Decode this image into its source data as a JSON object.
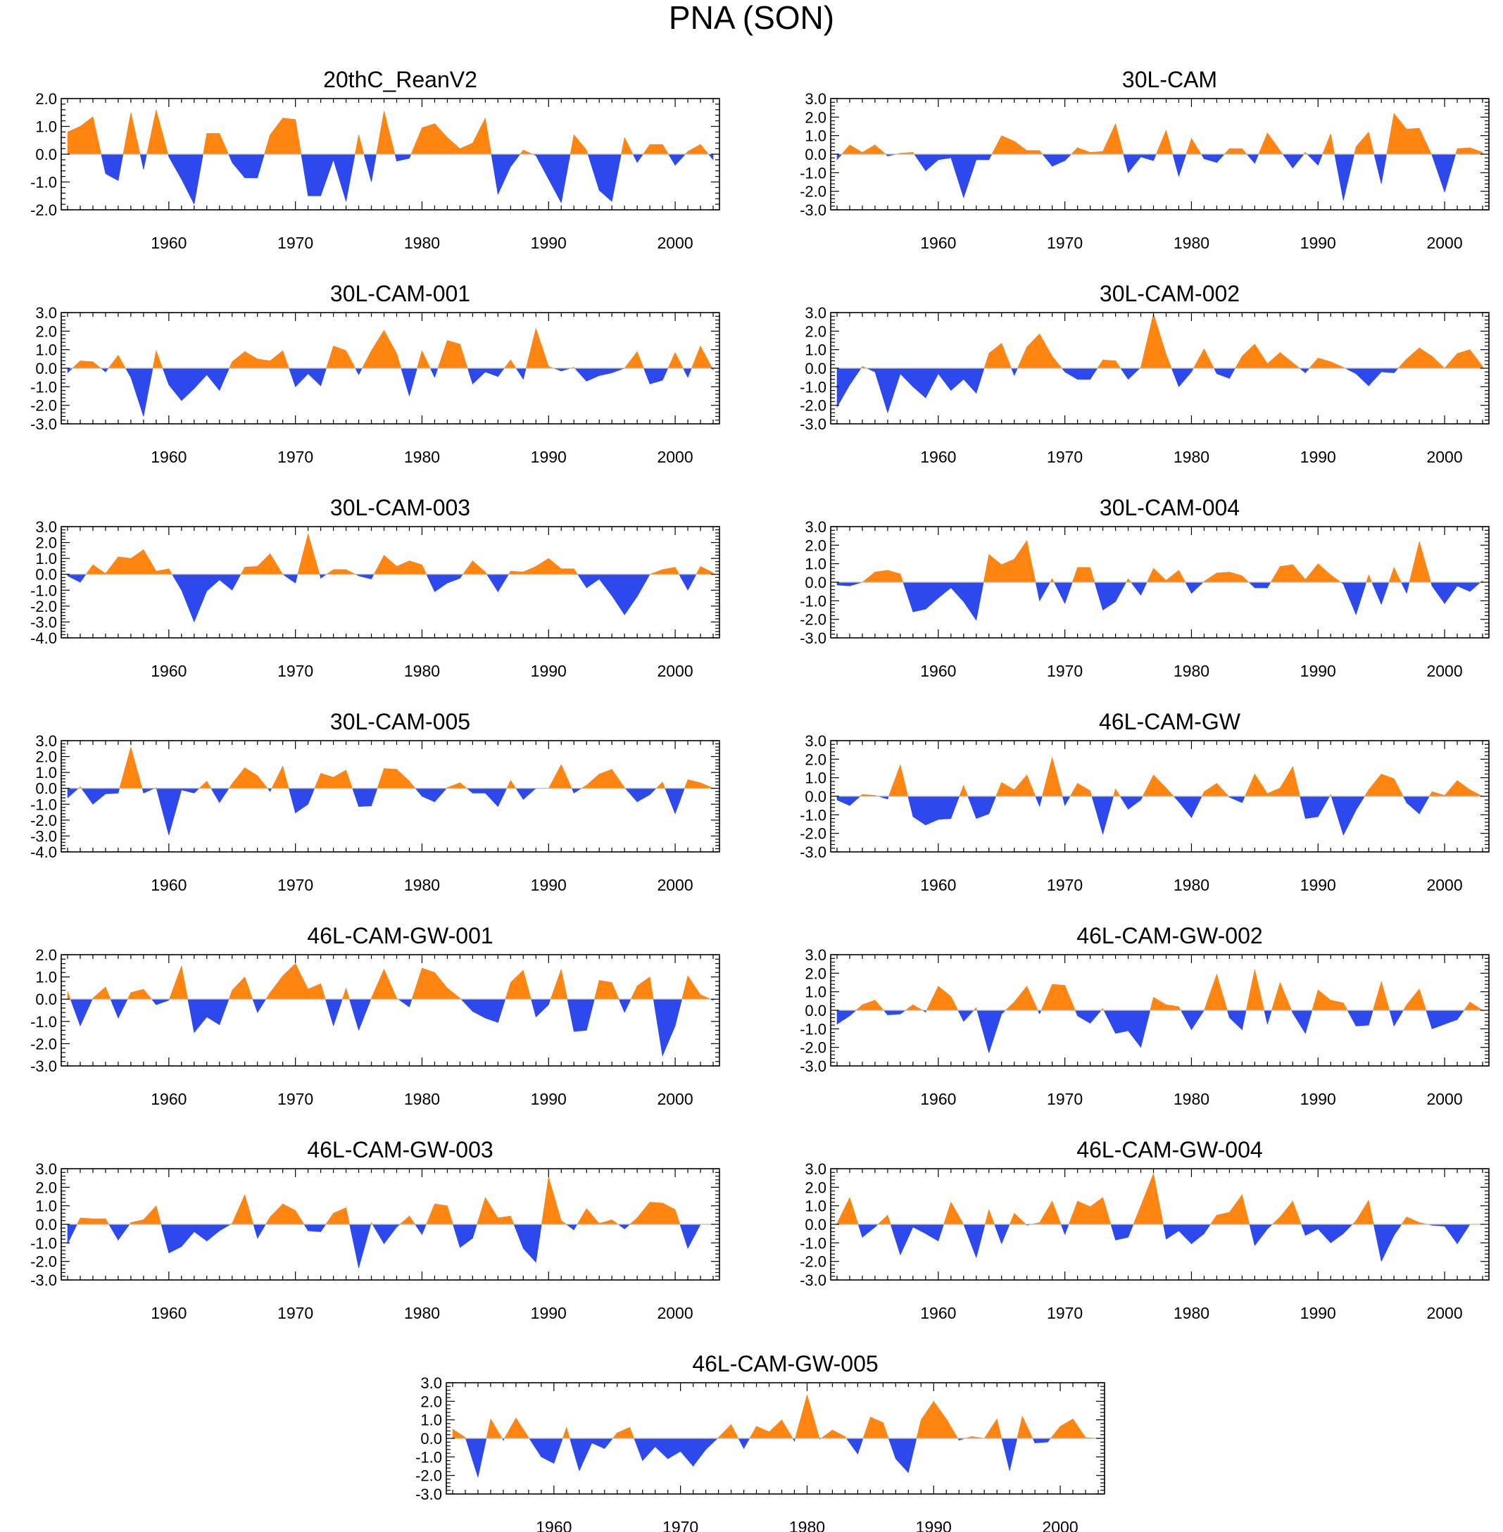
{
  "title": "PNA (SON)",
  "colors": {
    "positive": "#ff8410",
    "negative": "#2d49ee",
    "axis": "#000000"
  },
  "chart_data": [
    {
      "type": "area",
      "title": "20thC_ReanV2",
      "x_start": 1952,
      "xlim": [
        1951.5,
        2003.5
      ],
      "ylim": [
        -2.0,
        2.0
      ],
      "yticks": [
        -2.0,
        -1.0,
        0.0,
        1.0,
        2.0
      ],
      "xticks": [
        1960,
        1970,
        1980,
        1990,
        2000
      ],
      "values": [
        0.8,
        1.0,
        1.35,
        -0.7,
        -0.95,
        1.5,
        -0.55,
        1.6,
        -0.1,
        -0.9,
        -1.8,
        0.75,
        0.75,
        -0.3,
        -0.85,
        -0.85,
        0.7,
        1.3,
        1.25,
        -1.5,
        -1.5,
        -0.2,
        -1.7,
        0.7,
        -1.0,
        1.55,
        -0.25,
        -0.15,
        0.95,
        1.1,
        0.6,
        0.2,
        0.4,
        1.3,
        -1.45,
        -0.45,
        0.15,
        -0.05,
        -0.9,
        -1.75,
        0.7,
        0.15,
        -1.3,
        -1.7,
        0.6,
        -0.3,
        0.35,
        0.35,
        -0.4,
        0.1,
        0.35,
        -0.2
      ]
    },
    {
      "type": "area",
      "title": "30L-CAM",
      "x_start": 1952,
      "xlim": [
        1951.5,
        2003.5
      ],
      "ylim": [
        -3.0,
        3.0
      ],
      "yticks": [
        -3.0,
        -2.0,
        -1.0,
        0.0,
        1.0,
        2.0,
        3.0
      ],
      "xticks": [
        1960,
        1970,
        1980,
        1990,
        2000
      ],
      "values": [
        -0.3,
        0.5,
        0.1,
        0.5,
        -0.1,
        0.05,
        0.1,
        -0.9,
        -0.3,
        -0.2,
        -2.35,
        -0.3,
        -0.3,
        1.0,
        0.7,
        0.2,
        0.2,
        -0.65,
        -0.35,
        0.35,
        0.1,
        0.15,
        1.65,
        -1.0,
        -0.15,
        -0.35,
        1.3,
        -1.2,
        0.85,
        -0.25,
        -0.45,
        0.3,
        0.3,
        -0.5,
        1.15,
        0.2,
        -0.75,
        0.1,
        -0.6,
        1.1,
        -2.5,
        0.4,
        1.2,
        -1.6,
        2.2,
        1.35,
        1.4,
        -0.05,
        -2.05,
        0.3,
        0.35,
        0.1
      ]
    },
    {
      "type": "area",
      "title": "30L-CAM-001",
      "x_start": 1952,
      "xlim": [
        1951.5,
        2003.5
      ],
      "ylim": [
        -3.0,
        3.0
      ],
      "yticks": [
        -3.0,
        -2.0,
        -1.0,
        0.0,
        1.0,
        2.0,
        3.0
      ],
      "xticks": [
        1960,
        1970,
        1980,
        1990,
        2000
      ],
      "values": [
        -0.25,
        0.4,
        0.35,
        -0.2,
        0.7,
        -0.5,
        -2.6,
        0.95,
        -0.9,
        -1.75,
        -1.1,
        -0.35,
        -1.2,
        0.35,
        0.9,
        0.5,
        0.4,
        0.95,
        -1.0,
        -0.3,
        -0.95,
        1.2,
        0.95,
        -0.35,
        0.95,
        2.05,
        0.8,
        -1.5,
        0.95,
        -0.5,
        1.5,
        1.3,
        -0.85,
        -0.2,
        -0.45,
        0.45,
        -0.6,
        2.15,
        0.1,
        -0.15,
        0.05,
        -0.7,
        -0.4,
        -0.25,
        0.0,
        0.9,
        -0.85,
        -0.65,
        0.85,
        -0.5,
        1.2,
        -0.1
      ]
    },
    {
      "type": "area",
      "title": "30L-CAM-002",
      "x_start": 1952,
      "xlim": [
        1951.5,
        2003.5
      ],
      "ylim": [
        -3.0,
        3.0
      ],
      "yticks": [
        -3.0,
        -2.0,
        -1.0,
        0.0,
        1.0,
        2.0,
        3.0
      ],
      "xticks": [
        1960,
        1970,
        1980,
        1990,
        2000
      ],
      "values": [
        -2.1,
        -0.9,
        0.1,
        -0.2,
        -2.4,
        -0.3,
        -1.0,
        -1.6,
        -0.3,
        -1.2,
        -0.6,
        -1.35,
        0.8,
        1.35,
        -0.4,
        1.15,
        1.85,
        0.65,
        -0.2,
        -0.6,
        -0.6,
        0.45,
        0.4,
        -0.6,
        0.05,
        2.95,
        0.75,
        -1.0,
        -0.2,
        1.05,
        -0.3,
        -0.55,
        0.65,
        1.3,
        0.25,
        0.85,
        0.3,
        -0.25,
        0.55,
        0.35,
        0.05,
        -0.3,
        -0.95,
        -0.2,
        -0.25,
        0.5,
        1.1,
        0.65,
        0.0,
        0.8,
        1.0,
        0.1
      ]
    },
    {
      "type": "area",
      "title": "30L-CAM-003",
      "x_start": 1952,
      "xlim": [
        1951.5,
        2003.5
      ],
      "ylim": [
        -4.0,
        3.0
      ],
      "yticks": [
        -4.0,
        -3.0,
        -2.0,
        -1.0,
        0.0,
        1.0,
        2.0,
        3.0
      ],
      "xticks": [
        1960,
        1970,
        1980,
        1990,
        2000
      ],
      "values": [
        -0.1,
        -0.5,
        0.6,
        0.05,
        1.1,
        1.0,
        1.55,
        0.2,
        0.35,
        -1.0,
        -3.0,
        -1.05,
        -0.35,
        -1.0,
        0.45,
        0.5,
        1.3,
        0.0,
        -0.55,
        2.55,
        -0.25,
        0.3,
        0.3,
        -0.1,
        -0.3,
        1.2,
        0.5,
        0.85,
        0.6,
        -1.1,
        -0.55,
        -0.25,
        0.85,
        0.15,
        -1.1,
        0.2,
        0.15,
        0.5,
        1.0,
        0.35,
        0.35,
        -0.85,
        -0.3,
        -1.35,
        -2.55,
        -1.4,
        0.0,
        0.3,
        0.45,
        -1.0,
        0.5,
        0.1
      ]
    },
    {
      "type": "area",
      "title": "30L-CAM-004",
      "x_start": 1952,
      "xlim": [
        1951.5,
        2003.5
      ],
      "ylim": [
        -3.0,
        3.0
      ],
      "yticks": [
        -3.0,
        -2.0,
        -1.0,
        0.0,
        1.0,
        2.0,
        3.0
      ],
      "xticks": [
        1960,
        1970,
        1980,
        1990,
        2000
      ],
      "values": [
        -0.15,
        -0.2,
        0.0,
        0.55,
        0.65,
        0.45,
        -1.6,
        -1.45,
        -0.85,
        -0.3,
        -1.05,
        -2.05,
        1.5,
        0.95,
        1.25,
        2.25,
        -1.0,
        0.2,
        -1.15,
        0.8,
        0.8,
        -1.5,
        -1.05,
        0.2,
        -0.7,
        0.75,
        0.1,
        0.65,
        -0.6,
        0.05,
        0.5,
        0.55,
        0.35,
        -0.3,
        -0.3,
        0.85,
        0.95,
        0.15,
        1.0,
        0.4,
        -0.1,
        -1.75,
        0.4,
        -1.2,
        0.8,
        -0.6,
        2.2,
        -0.2,
        -1.15,
        -0.2,
        -0.5,
        0.1
      ]
    },
    {
      "type": "area",
      "title": "30L-CAM-005",
      "x_start": 1952,
      "xlim": [
        1951.5,
        2003.5
      ],
      "ylim": [
        -4.0,
        3.0
      ],
      "yticks": [
        -4.0,
        -3.0,
        -2.0,
        -1.0,
        0.0,
        1.0,
        2.0,
        3.0
      ],
      "xticks": [
        1960,
        1970,
        1980,
        1990,
        2000
      ],
      "values": [
        -0.6,
        0.1,
        -1.0,
        -0.35,
        -0.3,
        2.6,
        -0.3,
        0.05,
        -2.95,
        -0.1,
        -0.3,
        0.45,
        -0.9,
        0.3,
        1.3,
        0.8,
        -0.2,
        1.4,
        -1.55,
        -1.0,
        0.95,
        0.7,
        1.15,
        -1.15,
        -1.1,
        1.25,
        1.2,
        0.45,
        -0.5,
        -0.85,
        0.05,
        0.35,
        -0.3,
        -0.3,
        -1.15,
        0.5,
        -0.7,
        0.0,
        0.0,
        1.5,
        -0.3,
        0.2,
        0.9,
        1.2,
        0.05,
        -0.85,
        -0.4,
        0.4,
        -1.6,
        0.55,
        0.35,
        0.0
      ]
    },
    {
      "type": "area",
      "title": "46L-CAM-GW",
      "x_start": 1952,
      "xlim": [
        1951.5,
        2003.5
      ],
      "ylim": [
        -3.0,
        3.0
      ],
      "yticks": [
        -3.0,
        -2.0,
        -1.0,
        0.0,
        1.0,
        2.0,
        3.0
      ],
      "xticks": [
        1960,
        1970,
        1980,
        1990,
        2000
      ],
      "values": [
        -0.2,
        -0.5,
        0.1,
        0.05,
        -0.15,
        1.7,
        -1.1,
        -1.55,
        -1.25,
        -1.2,
        0.6,
        -1.2,
        -0.95,
        0.75,
        0.35,
        1.15,
        -0.55,
        2.1,
        -0.5,
        0.7,
        0.3,
        -2.05,
        0.4,
        -0.7,
        -0.2,
        1.15,
        0.45,
        -0.3,
        -1.15,
        0.25,
        0.7,
        -0.05,
        -0.35,
        1.2,
        0.15,
        0.45,
        1.6,
        -1.2,
        -1.1,
        0.1,
        -2.1,
        -0.75,
        0.35,
        1.2,
        0.95,
        -0.35,
        -0.95,
        0.25,
        0.05,
        0.85,
        0.35,
        0.0
      ]
    },
    {
      "type": "area",
      "title": "46L-CAM-GW-001",
      "x_start": 1952,
      "xlim": [
        1951.5,
        2003.5
      ],
      "ylim": [
        -3.0,
        2.0
      ],
      "yticks": [
        -3.0,
        -2.0,
        -1.0,
        0.0,
        1.0,
        2.0
      ],
      "xticks": [
        1960,
        1970,
        1980,
        1990,
        2000
      ],
      "values": [
        0.35,
        -1.2,
        0.05,
        0.55,
        -0.85,
        0.3,
        0.45,
        -0.25,
        -0.05,
        1.5,
        -1.5,
        -0.8,
        -1.15,
        0.4,
        1.0,
        -0.6,
        0.3,
        1.05,
        1.6,
        0.45,
        0.7,
        -1.2,
        0.5,
        -1.4,
        0.05,
        1.35,
        0.05,
        -0.35,
        1.4,
        1.2,
        0.5,
        0.05,
        -0.55,
        -0.85,
        -1.05,
        0.75,
        1.3,
        -0.8,
        -0.25,
        1.35,
        -1.45,
        -1.4,
        0.85,
        0.75,
        -0.6,
        0.6,
        1.0,
        -2.55,
        -1.2,
        1.05,
        0.2,
        -0.05
      ]
    },
    {
      "type": "area",
      "title": "46L-CAM-GW-002",
      "x_start": 1952,
      "xlim": [
        1951.5,
        2003.5
      ],
      "ylim": [
        -3.0,
        3.0
      ],
      "yticks": [
        -3.0,
        -2.0,
        -1.0,
        0.0,
        1.0,
        2.0,
        3.0
      ],
      "xticks": [
        1960,
        1970,
        1980,
        1990,
        2000
      ],
      "values": [
        -0.75,
        -0.3,
        0.3,
        0.55,
        -0.25,
        -0.2,
        0.3,
        -0.1,
        1.3,
        0.75,
        -0.6,
        0.15,
        -2.3,
        -0.2,
        0.45,
        1.3,
        -0.2,
        1.4,
        1.35,
        -0.3,
        -0.7,
        0.1,
        -1.25,
        -1.1,
        -2.0,
        0.7,
        0.3,
        0.2,
        -1.05,
        0.0,
        1.95,
        -0.4,
        -1.05,
        2.2,
        -0.75,
        1.5,
        -0.15,
        -1.25,
        1.1,
        0.55,
        0.4,
        -0.85,
        -0.8,
        1.55,
        -0.85,
        0.3,
        1.15,
        -1.0,
        -0.75,
        -0.5,
        0.45,
        0.0
      ]
    },
    {
      "type": "area",
      "title": "46L-CAM-GW-003",
      "x_start": 1952,
      "xlim": [
        1951.5,
        2003.5
      ],
      "ylim": [
        -3.0,
        3.0
      ],
      "yticks": [
        -3.0,
        -2.0,
        -1.0,
        0.0,
        1.0,
        2.0,
        3.0
      ],
      "xticks": [
        1960,
        1970,
        1980,
        1990,
        2000
      ],
      "values": [
        -1.05,
        0.35,
        0.3,
        0.3,
        -0.85,
        0.1,
        0.25,
        1.0,
        -1.55,
        -1.2,
        -0.4,
        -0.9,
        -0.35,
        0.05,
        1.6,
        -0.75,
        0.4,
        1.1,
        0.75,
        -0.35,
        -0.4,
        0.6,
        0.9,
        -2.35,
        0.1,
        -1.05,
        -0.15,
        0.45,
        -0.55,
        1.1,
        1.0,
        -1.25,
        -0.75,
        1.45,
        0.35,
        0.45,
        -1.3,
        -2.05,
        2.55,
        0.2,
        -0.3,
        0.85,
        0.05,
        0.25,
        -0.25,
        0.35,
        1.2,
        1.15,
        0.8,
        -1.3,
        0.0,
        0.0
      ]
    },
    {
      "type": "area",
      "title": "46L-CAM-GW-004",
      "x_start": 1952,
      "xlim": [
        1951.5,
        2003.5
      ],
      "ylim": [
        -3.0,
        3.0
      ],
      "yticks": [
        -3.0,
        -2.0,
        -1.0,
        0.0,
        1.0,
        2.0,
        3.0
      ],
      "xticks": [
        1960,
        1970,
        1980,
        1990,
        2000
      ],
      "values": [
        0.05,
        1.45,
        -0.7,
        -0.15,
        0.5,
        -1.65,
        -0.15,
        -0.5,
        -0.9,
        1.2,
        0.0,
        -1.8,
        0.8,
        -1.05,
        0.6,
        -0.05,
        0.1,
        1.25,
        -0.55,
        1.25,
        0.95,
        1.45,
        -0.85,
        -0.7,
        1.0,
        2.75,
        -0.8,
        -0.35,
        -1.05,
        -0.5,
        0.5,
        0.65,
        1.6,
        -1.15,
        -0.25,
        0.4,
        1.25,
        -0.6,
        -0.25,
        -1.0,
        -0.5,
        0.2,
        1.3,
        -2.0,
        -0.6,
        0.4,
        0.1,
        -0.05,
        -0.1,
        -1.05,
        0.0,
        0.0
      ]
    },
    {
      "type": "area",
      "title": "46L-CAM-GW-005",
      "x_start": 1952,
      "xlim": [
        1951.5,
        2003.5
      ],
      "ylim": [
        -3.0,
        3.0
      ],
      "yticks": [
        -3.0,
        -2.0,
        -1.0,
        0.0,
        1.0,
        2.0,
        3.0
      ],
      "xticks": [
        1960,
        1970,
        1980,
        1990,
        2000
      ],
      "values": [
        0.5,
        0.05,
        -2.1,
        1.05,
        -0.1,
        1.1,
        0.05,
        -1.0,
        -1.35,
        0.6,
        -1.75,
        -0.25,
        -0.55,
        0.3,
        0.6,
        -1.2,
        -0.45,
        -1.1,
        -0.7,
        -1.5,
        -0.6,
        0.05,
        0.75,
        -0.55,
        0.65,
        0.35,
        1.0,
        -0.15,
        2.35,
        -0.05,
        0.45,
        0.1,
        -0.85,
        1.15,
        0.85,
        -1.1,
        -1.85,
        1.0,
        2.0,
        1.05,
        -0.1,
        0.1,
        0.0,
        1.05,
        -1.75,
        1.2,
        -0.25,
        -0.2,
        0.65,
        1.05,
        0.05,
        0.0
      ]
    }
  ]
}
